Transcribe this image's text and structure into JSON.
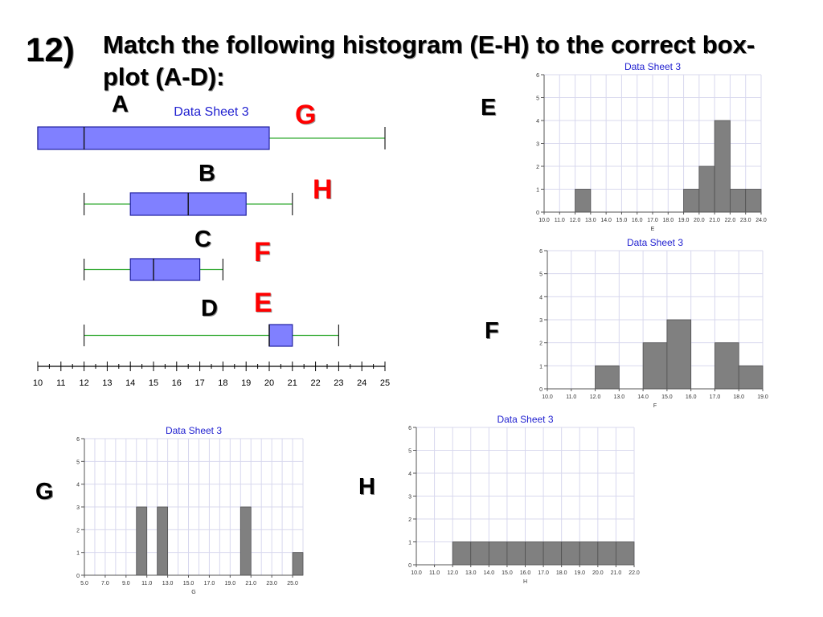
{
  "slide": {
    "number": "12)",
    "question": "Match the following histogram (E-H) to the correct box-plot (A-D):"
  },
  "boxplots": {
    "sheet_title": "Data Sheet 3",
    "labels": {
      "A": "A",
      "B": "B",
      "C": "C",
      "D": "D"
    },
    "answers": {
      "A": "G",
      "B": "H",
      "C": "F",
      "D": "E"
    }
  },
  "histogram_labels": {
    "E": "E",
    "F": "F",
    "G": "G",
    "H": "H"
  },
  "colors": {
    "box_fill": "#8080ff",
    "box_stroke": "#2020a0",
    "whisker": "#33aa33",
    "bar_fill": "#808080",
    "bar_stroke": "#505050",
    "grid": "#d8d8ee",
    "chart_title": "#1f1fd0",
    "answer": "#ff0000"
  },
  "chart_data": [
    {
      "id": "boxplots",
      "type": "boxplot",
      "title": "Data Sheet 3",
      "xticks": [
        10,
        11,
        12,
        13,
        14,
        15,
        16,
        17,
        18,
        19,
        20,
        21,
        22,
        23,
        24,
        25
      ],
      "xlim": [
        10,
        25
      ],
      "boxes": [
        {
          "label": "A",
          "min": 10,
          "q1": 10,
          "median": 12,
          "q3": 20,
          "max": 25
        },
        {
          "label": "B",
          "min": 12,
          "q1": 14,
          "median": 16.5,
          "q3": 19,
          "max": 21
        },
        {
          "label": "C",
          "min": 12,
          "q1": 14,
          "median": 15,
          "q3": 17,
          "max": 18
        },
        {
          "label": "D",
          "min": 12,
          "q1": 20,
          "median": 20,
          "q3": 21,
          "max": 23
        }
      ]
    },
    {
      "id": "E",
      "type": "bar",
      "title": "Data Sheet 3",
      "xlabel": "E",
      "edges": [
        10,
        11,
        12,
        13,
        14,
        15,
        16,
        17,
        18,
        19,
        20,
        21,
        22,
        23,
        24
      ],
      "values": [
        0,
        0,
        1,
        0,
        0,
        0,
        0,
        0,
        0,
        1,
        2,
        4,
        1,
        1
      ],
      "xtick_labels": [
        "10.0",
        "11.0",
        "12.0",
        "13.0",
        "14.0",
        "15.0",
        "16.0",
        "17.0",
        "18.0",
        "19.0",
        "20.0",
        "21.0",
        "22.0",
        "23.0",
        "24.0"
      ],
      "yticks": [
        "0",
        "1",
        "2",
        "3",
        "4",
        "5",
        "6"
      ],
      "ylim": [
        0,
        6
      ]
    },
    {
      "id": "F",
      "type": "bar",
      "title": "Data Sheet 3",
      "xlabel": "F",
      "edges": [
        10,
        11,
        12,
        13,
        14,
        15,
        16,
        17,
        18,
        19
      ],
      "values": [
        0,
        0,
        1,
        0,
        2,
        3,
        0,
        2,
        1
      ],
      "xtick_labels": [
        "10.0",
        "11.0",
        "12.0",
        "13.0",
        "14.0",
        "15.0",
        "16.0",
        "17.0",
        "18.0",
        "19.0"
      ],
      "yticks": [
        "0",
        "1",
        "2",
        "3",
        "4",
        "5",
        "6"
      ],
      "ylim": [
        0,
        6
      ]
    },
    {
      "id": "G",
      "type": "bar",
      "title": "Data Sheet 3",
      "xlabel": "G",
      "edges": [
        5,
        6,
        7,
        8,
        9,
        10,
        11,
        12,
        13,
        14,
        15,
        16,
        17,
        18,
        19,
        20,
        21,
        22,
        23,
        24,
        25,
        26
      ],
      "values": [
        0,
        0,
        0,
        0,
        0,
        3,
        0,
        3,
        0,
        0,
        0,
        0,
        0,
        0,
        0,
        3,
        0,
        0,
        0,
        0,
        1
      ],
      "xtick_labels": [
        "5.0",
        "7.0",
        "9.0",
        "11.0",
        "13.0",
        "15.0",
        "17.0",
        "19.0",
        "21.0",
        "23.0",
        "25.0"
      ],
      "xtick_values": [
        5,
        7,
        9,
        11,
        13,
        15,
        17,
        19,
        21,
        23,
        25
      ],
      "yticks": [
        "0",
        "1",
        "2",
        "3",
        "4",
        "5",
        "6"
      ],
      "ylim": [
        0,
        6
      ]
    },
    {
      "id": "H",
      "type": "bar",
      "title": "Data Sheet 3",
      "xlabel": "H",
      "edges": [
        10,
        11,
        12,
        13,
        14,
        15,
        16,
        17,
        18,
        19,
        20,
        21,
        22
      ],
      "values": [
        0,
        0,
        1,
        1,
        1,
        1,
        1,
        1,
        1,
        1,
        1,
        1
      ],
      "xtick_labels": [
        "10.0",
        "11.0",
        "12.0",
        "13.0",
        "14.0",
        "15.0",
        "16.0",
        "17.0",
        "18.0",
        "19.0",
        "20.0",
        "21.0",
        "22.0"
      ],
      "yticks": [
        "0",
        "1",
        "2",
        "3",
        "4",
        "5",
        "6"
      ],
      "ylim": [
        0,
        6
      ]
    }
  ]
}
